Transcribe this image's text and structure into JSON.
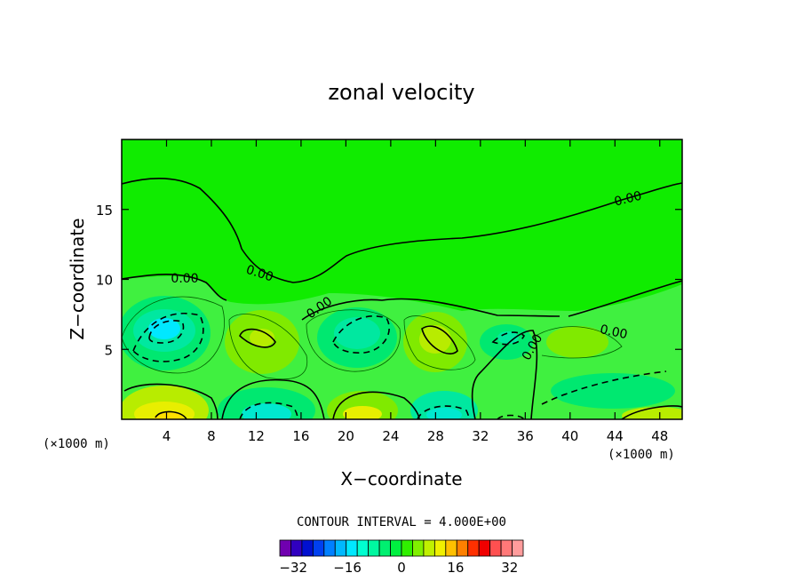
{
  "chart_data": {
    "type": "contour",
    "title": "zonal velocity",
    "xlabel": "X−coordinate",
    "ylabel": "Z−coordinate",
    "x_unit_left": "(×1000 m)",
    "x_unit_right": "(×1000 m)",
    "xlim": [
      0,
      50
    ],
    "ylim": [
      0,
      20
    ],
    "x_ticks": [
      4,
      8,
      12,
      16,
      20,
      24,
      28,
      32,
      36,
      40,
      44,
      48
    ],
    "x_tick_labels": [
      "4",
      "8",
      "12",
      "16",
      "20",
      "24",
      "28",
      "32",
      "36",
      "40",
      "44",
      "48"
    ],
    "y_ticks": [
      5,
      10,
      15
    ],
    "y_tick_labels": [
      "5",
      "10",
      "15"
    ],
    "contour_interval_text": "CONTOUR INTERVAL = 4.000E+00",
    "contour_interval": 4.0,
    "contour_labels": [
      "0.00",
      "0.00",
      "0.00",
      "0.00",
      "0.00",
      "0.00"
    ],
    "colorbar": {
      "min": -36,
      "max": 36,
      "tick_values": [
        -32,
        -16,
        0,
        16,
        32
      ],
      "tick_labels": [
        "−32",
        "−16",
        "0",
        "16",
        "32"
      ],
      "colors": [
        "#7000b0",
        "#3000c0",
        "#0010d0",
        "#0040f0",
        "#0080ff",
        "#00b8ff",
        "#00e8ff",
        "#00ffd0",
        "#00f8a0",
        "#00f070",
        "#00f040",
        "#30f000",
        "#80f000",
        "#c0f000",
        "#f0f000",
        "#ffc000",
        "#ff8000",
        "#ff3000",
        "#f00000",
        "#ff5050",
        "#ff7878",
        "#ff9c9c"
      ]
    },
    "field_colors": {
      "background": "#10ec00",
      "light": "#40f040",
      "weak_neg": "#00e870",
      "mid_neg": "#00e8a0",
      "strong_neg": "#00e8d0",
      "strongest_neg": "#00e8ff",
      "weak_pos": "#80ea00",
      "mid_pos": "#b8ec00",
      "strong_pos": "#e8ee00",
      "strongest_pos": "#ffe000"
    }
  }
}
